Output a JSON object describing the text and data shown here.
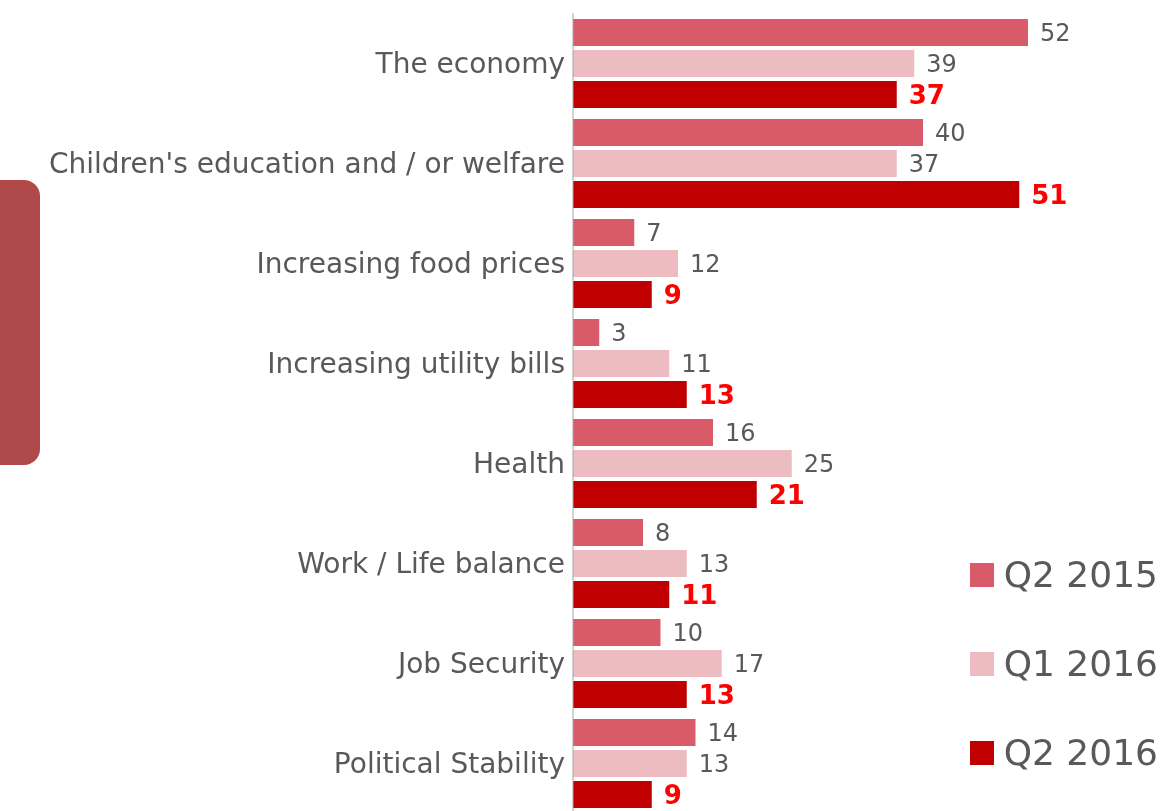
{
  "chart_data": {
    "type": "bar",
    "orientation": "horizontal",
    "data_labels": true,
    "legend": "bottom right",
    "categories": [
      "The economy",
      "Children's education and / or welfare",
      "Increasing food prices",
      "Increasing utility bills",
      "Health",
      "Work / Life balance",
      "Job Security",
      "Political Stability"
    ],
    "series": [
      {
        "name": "Q2 2015",
        "color": "#d95b69",
        "values": [
          52,
          40,
          7,
          3,
          16,
          8,
          10,
          14
        ]
      },
      {
        "name": "Q1 2016",
        "color": "#ecbcc0",
        "values": [
          39,
          37,
          12,
          11,
          25,
          13,
          17,
          13
        ]
      },
      {
        "name": "Q2 2016",
        "color": "#c00000",
        "values": [
          37,
          51,
          9,
          13,
          21,
          11,
          13,
          9
        ]
      }
    ]
  }
}
